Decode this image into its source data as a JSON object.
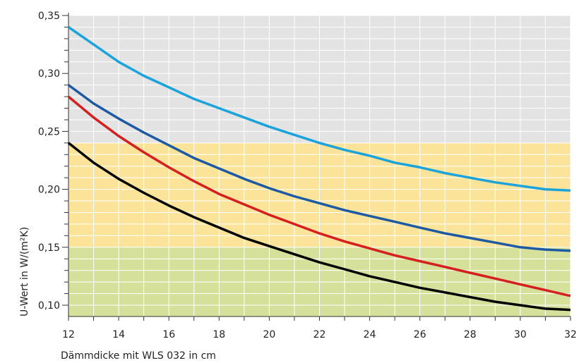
{
  "chart_data": {
    "type": "line",
    "title": "",
    "xlabel": "Dämmdicke mit WLS 032 in cm",
    "ylabel": "U-Wert in W/(m²K)",
    "xlim": [
      12,
      32
    ],
    "ylim": [
      0.09,
      0.35
    ],
    "x_ticks": [
      12,
      14,
      16,
      18,
      20,
      22,
      24,
      26,
      28,
      30,
      32
    ],
    "x_tick_labels": [
      "12",
      "14",
      "16",
      "18",
      "20",
      "22",
      "24",
      "26",
      "28",
      "30",
      "32"
    ],
    "y_ticks": [
      0.1,
      0.15,
      0.2,
      0.25,
      0.3,
      0.35
    ],
    "y_tick_labels": [
      "0,10",
      "0,15",
      "0,20",
      "0,25",
      "0,30",
      "0,35"
    ],
    "grid": true,
    "legend": "none",
    "bands": [
      {
        "from": 0.09,
        "to": 0.15,
        "color": "#d5e09b"
      },
      {
        "from": 0.15,
        "to": 0.24,
        "color": "#fbe49a"
      },
      {
        "from": 0.24,
        "to": 0.35,
        "color": "#e3e3e3"
      }
    ],
    "x": [
      12,
      13,
      14,
      15,
      16,
      17,
      18,
      19,
      20,
      21,
      22,
      23,
      24,
      25,
      26,
      27,
      28,
      29,
      30,
      31,
      32
    ],
    "series": [
      {
        "color": "#1ca3dc",
        "values": [
          0.34,
          0.325,
          0.31,
          0.298,
          0.288,
          0.278,
          0.27,
          0.262,
          0.254,
          0.247,
          0.24,
          0.234,
          0.229,
          0.223,
          0.219,
          0.214,
          0.21,
          0.206,
          0.203,
          0.2,
          0.199
        ]
      },
      {
        "color": "#1d5aa3",
        "values": [
          0.29,
          0.274,
          0.261,
          0.249,
          0.238,
          0.227,
          0.218,
          0.209,
          0.201,
          0.194,
          0.188,
          0.182,
          0.177,
          0.172,
          0.167,
          0.162,
          0.158,
          0.154,
          0.15,
          0.148,
          0.147
        ]
      },
      {
        "color": "#d42020",
        "values": [
          0.28,
          0.262,
          0.246,
          0.232,
          0.219,
          0.207,
          0.196,
          0.187,
          0.178,
          0.17,
          0.162,
          0.155,
          0.149,
          0.143,
          0.138,
          0.133,
          0.128,
          0.123,
          0.118,
          0.113,
          0.108
        ]
      },
      {
        "color": "#000000",
        "values": [
          0.24,
          0.223,
          0.209,
          0.197,
          0.186,
          0.176,
          0.167,
          0.158,
          0.151,
          0.144,
          0.137,
          0.131,
          0.125,
          0.12,
          0.115,
          0.111,
          0.107,
          0.103,
          0.1,
          0.097,
          0.096
        ]
      }
    ]
  }
}
